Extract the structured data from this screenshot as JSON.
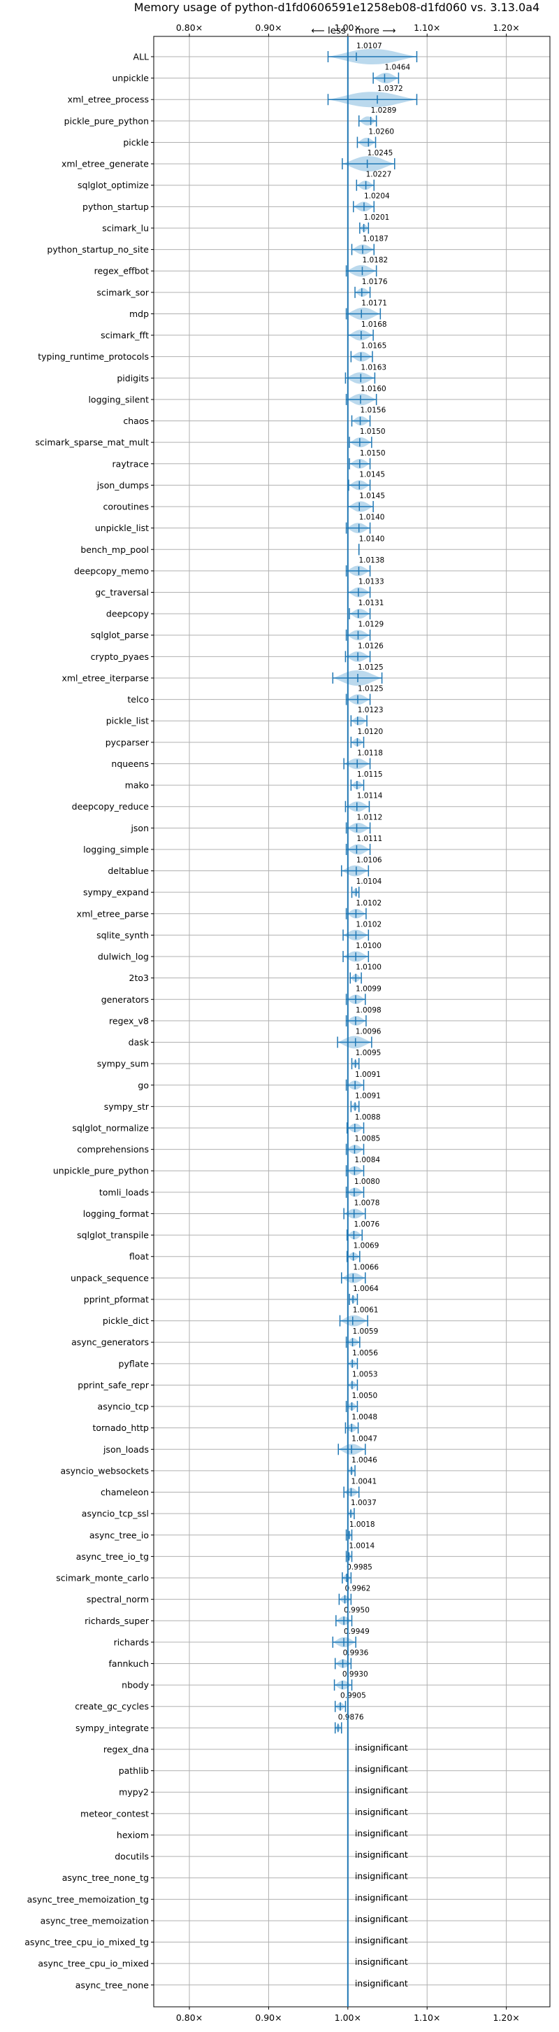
{
  "chart_data": {
    "type": "violin",
    "title": "Memory usage of python-d1fd0606591e1258eb08-d1fd060 vs. 3.13.0a4",
    "direction_label": "⟵ less · more ⟶",
    "x_ticks": [
      {
        "value": 0.8,
        "label": "0.80×"
      },
      {
        "value": 0.9,
        "label": "0.90×"
      },
      {
        "value": 1.0,
        "label": "1.00×"
      },
      {
        "value": 1.1,
        "label": "1.10×"
      },
      {
        "value": 1.2,
        "label": "1.20×"
      }
    ],
    "xlim": [
      0.755,
      1.255
    ],
    "reference_line": 1.0,
    "grid": true,
    "colors": {
      "violin": "#aacfe8",
      "whisker": "#1f77b4",
      "grid": "#b0b0b0",
      "axis": "#000000"
    },
    "insignificant_label": "insignificant",
    "benchmarks": [
      {
        "name": "ALL",
        "value": 1.0107,
        "label": "1.0107",
        "min": 0.975,
        "max": 1.087
      },
      {
        "name": "unpickle",
        "value": 1.0464,
        "label": "1.0464",
        "min": 1.032,
        "max": 1.064
      },
      {
        "name": "xml_etree_process",
        "value": 1.0372,
        "label": "1.0372",
        "min": 0.975,
        "max": 1.087
      },
      {
        "name": "pickle_pure_python",
        "value": 1.0289,
        "label": "1.0289",
        "min": 1.014,
        "max": 1.036
      },
      {
        "name": "pickle",
        "value": 1.026,
        "label": "1.0260",
        "min": 1.012,
        "max": 1.035
      },
      {
        "name": "xml_etree_generate",
        "value": 1.0245,
        "label": "1.0245",
        "min": 0.993,
        "max": 1.059
      },
      {
        "name": "sqlglot_optimize",
        "value": 1.0227,
        "label": "1.0227",
        "min": 1.011,
        "max": 1.033
      },
      {
        "name": "python_startup",
        "value": 1.0204,
        "label": "1.0204",
        "min": 1.007,
        "max": 1.033
      },
      {
        "name": "scimark_lu",
        "value": 1.0201,
        "label": "1.0201",
        "min": 1.015,
        "max": 1.026
      },
      {
        "name": "python_startup_no_site",
        "value": 1.0187,
        "label": "1.0187",
        "min": 1.005,
        "max": 1.033
      },
      {
        "name": "regex_effbot",
        "value": 1.0182,
        "label": "1.0182",
        "min": 0.998,
        "max": 1.036
      },
      {
        "name": "scimark_sor",
        "value": 1.0176,
        "label": "1.0176",
        "min": 1.009,
        "max": 1.028
      },
      {
        "name": "mdp",
        "value": 1.0171,
        "label": "1.0171",
        "min": 0.998,
        "max": 1.041
      },
      {
        "name": "scimark_fft",
        "value": 1.0168,
        "label": "1.0168",
        "min": 1.0,
        "max": 1.032
      },
      {
        "name": "typing_runtime_protocols",
        "value": 1.0165,
        "label": "1.0165",
        "min": 1.004,
        "max": 1.031
      },
      {
        "name": "pidigits",
        "value": 1.0163,
        "label": "1.0163",
        "min": 0.997,
        "max": 1.034
      },
      {
        "name": "logging_silent",
        "value": 1.016,
        "label": "1.0160",
        "min": 0.998,
        "max": 1.036
      },
      {
        "name": "chaos",
        "value": 1.0156,
        "label": "1.0156",
        "min": 1.005,
        "max": 1.028
      },
      {
        "name": "scimark_sparse_mat_mult",
        "value": 1.015,
        "label": "1.0150",
        "min": 1.002,
        "max": 1.03
      },
      {
        "name": "raytrace",
        "value": 1.015,
        "label": "1.0150",
        "min": 1.002,
        "max": 1.028
      },
      {
        "name": "json_dumps",
        "value": 1.0145,
        "label": "1.0145",
        "min": 1.001,
        "max": 1.028
      },
      {
        "name": "coroutines",
        "value": 1.0145,
        "label": "1.0145",
        "min": 1.0,
        "max": 1.032
      },
      {
        "name": "unpickle_list",
        "value": 1.014,
        "label": "1.0140",
        "min": 0.998,
        "max": 1.028
      },
      {
        "name": "bench_mp_pool",
        "value": 1.014,
        "label": "1.0140",
        "min": 1.014,
        "max": 1.014
      },
      {
        "name": "deepcopy_memo",
        "value": 1.0138,
        "label": "1.0138",
        "min": 0.998,
        "max": 1.028
      },
      {
        "name": "gc_traversal",
        "value": 1.0133,
        "label": "1.0133",
        "min": 1.0,
        "max": 1.028
      },
      {
        "name": "deepcopy",
        "value": 1.0131,
        "label": "1.0131",
        "min": 1.002,
        "max": 1.028
      },
      {
        "name": "sqlglot_parse",
        "value": 1.0129,
        "label": "1.0129",
        "min": 0.998,
        "max": 1.028
      },
      {
        "name": "crypto_pyaes",
        "value": 1.0126,
        "label": "1.0126",
        "min": 0.997,
        "max": 1.028
      },
      {
        "name": "xml_etree_iterparse",
        "value": 1.0125,
        "label": "1.0125",
        "min": 0.981,
        "max": 1.043
      },
      {
        "name": "telco",
        "value": 1.0125,
        "label": "1.0125",
        "min": 0.998,
        "max": 1.028
      },
      {
        "name": "pickle_list",
        "value": 1.0123,
        "label": "1.0123",
        "min": 1.004,
        "max": 1.024
      },
      {
        "name": "pycparser",
        "value": 1.012,
        "label": "1.0120",
        "min": 1.004,
        "max": 1.02
      },
      {
        "name": "nqueens",
        "value": 1.0118,
        "label": "1.0118",
        "min": 0.995,
        "max": 1.028
      },
      {
        "name": "mako",
        "value": 1.0115,
        "label": "1.0115",
        "min": 1.004,
        "max": 1.02
      },
      {
        "name": "deepcopy_reduce",
        "value": 1.0114,
        "label": "1.0114",
        "min": 0.997,
        "max": 1.027
      },
      {
        "name": "json",
        "value": 1.0112,
        "label": "1.0112",
        "min": 0.998,
        "max": 1.028
      },
      {
        "name": "logging_simple",
        "value": 1.0111,
        "label": "1.0111",
        "min": 0.998,
        "max": 1.028
      },
      {
        "name": "deltablue",
        "value": 1.0106,
        "label": "1.0106",
        "min": 0.992,
        "max": 1.026
      },
      {
        "name": "sympy_expand",
        "value": 1.0104,
        "label": "1.0104",
        "min": 1.005,
        "max": 1.014
      },
      {
        "name": "xml_etree_parse",
        "value": 1.0102,
        "label": "1.0102",
        "min": 0.998,
        "max": 1.023
      },
      {
        "name": "sqlite_synth",
        "value": 1.0102,
        "label": "1.0102",
        "min": 0.994,
        "max": 1.026
      },
      {
        "name": "dulwich_log",
        "value": 1.01,
        "label": "1.0100",
        "min": 0.994,
        "max": 1.026
      },
      {
        "name": "2to3",
        "value": 1.01,
        "label": "1.0100",
        "min": 1.003,
        "max": 1.017
      },
      {
        "name": "generators",
        "value": 1.0099,
        "label": "1.0099",
        "min": 0.998,
        "max": 1.022
      },
      {
        "name": "regex_v8",
        "value": 1.0098,
        "label": "1.0098",
        "min": 0.998,
        "max": 1.023
      },
      {
        "name": "dask",
        "value": 1.0096,
        "label": "1.0096",
        "min": 0.987,
        "max": 1.03
      },
      {
        "name": "sympy_sum",
        "value": 1.0095,
        "label": "1.0095",
        "min": 1.005,
        "max": 1.014
      },
      {
        "name": "go",
        "value": 1.0091,
        "label": "1.0091",
        "min": 0.998,
        "max": 1.02
      },
      {
        "name": "sympy_str",
        "value": 1.0091,
        "label": "1.0091",
        "min": 1.004,
        "max": 1.014
      },
      {
        "name": "sqlglot_normalize",
        "value": 1.0088,
        "label": "1.0088",
        "min": 0.999,
        "max": 1.02
      },
      {
        "name": "comprehensions",
        "value": 1.0085,
        "label": "1.0085",
        "min": 0.998,
        "max": 1.02
      },
      {
        "name": "unpickle_pure_python",
        "value": 1.0084,
        "label": "1.0084",
        "min": 0.998,
        "max": 1.02
      },
      {
        "name": "tomli_loads",
        "value": 1.008,
        "label": "1.0080",
        "min": 0.998,
        "max": 1.02
      },
      {
        "name": "logging_format",
        "value": 1.0078,
        "label": "1.0078",
        "min": 0.995,
        "max": 1.022
      },
      {
        "name": "sqlglot_transpile",
        "value": 1.0076,
        "label": "1.0076",
        "min": 0.999,
        "max": 1.018
      },
      {
        "name": "float",
        "value": 1.0069,
        "label": "1.0069",
        "min": 0.999,
        "max": 1.015
      },
      {
        "name": "unpack_sequence",
        "value": 1.0066,
        "label": "1.0066",
        "min": 0.992,
        "max": 1.022
      },
      {
        "name": "pprint_pformat",
        "value": 1.0064,
        "label": "1.0064",
        "min": 1.002,
        "max": 1.012
      },
      {
        "name": "pickle_dict",
        "value": 1.0061,
        "label": "1.0061",
        "min": 0.99,
        "max": 1.025
      },
      {
        "name": "async_generators",
        "value": 1.0059,
        "label": "1.0059",
        "min": 0.998,
        "max": 1.015
      },
      {
        "name": "pyflate",
        "value": 1.0056,
        "label": "1.0056",
        "min": 1.0,
        "max": 1.012
      },
      {
        "name": "pprint_safe_repr",
        "value": 1.0053,
        "label": "1.0053",
        "min": 1.0,
        "max": 1.012
      },
      {
        "name": "asyncio_tcp",
        "value": 1.005,
        "label": "1.0050",
        "min": 0.998,
        "max": 1.012
      },
      {
        "name": "tornado_http",
        "value": 1.0048,
        "label": "1.0048",
        "min": 0.997,
        "max": 1.013
      },
      {
        "name": "json_loads",
        "value": 1.0047,
        "label": "1.0047",
        "min": 0.988,
        "max": 1.022
      },
      {
        "name": "asyncio_websockets",
        "value": 1.0046,
        "label": "1.0046",
        "min": 1.0,
        "max": 1.009
      },
      {
        "name": "chameleon",
        "value": 1.0041,
        "label": "1.0041",
        "min": 0.995,
        "max": 1.014
      },
      {
        "name": "asyncio_tcp_ssl",
        "value": 1.0037,
        "label": "1.0037",
        "min": 1.0,
        "max": 1.008
      },
      {
        "name": "async_tree_io",
        "value": 1.0018,
        "label": "1.0018",
        "min": 0.998,
        "max": 1.005
      },
      {
        "name": "async_tree_io_tg",
        "value": 1.0014,
        "label": "1.0014",
        "min": 0.998,
        "max": 1.005
      },
      {
        "name": "scimark_monte_carlo",
        "value": 0.9985,
        "label": "0.9985",
        "min": 0.993,
        "max": 1.004
      },
      {
        "name": "spectral_norm",
        "value": 0.9962,
        "label": "0.9962",
        "min": 0.989,
        "max": 1.004
      },
      {
        "name": "richards_super",
        "value": 0.995,
        "label": "0.9950",
        "min": 0.985,
        "max": 1.005
      },
      {
        "name": "richards",
        "value": 0.9949,
        "label": "0.9949",
        "min": 0.981,
        "max": 1.01
      },
      {
        "name": "fannkuch",
        "value": 0.9936,
        "label": "0.9936",
        "min": 0.984,
        "max": 1.004
      },
      {
        "name": "nbody",
        "value": 0.993,
        "label": "0.9930",
        "min": 0.983,
        "max": 1.005
      },
      {
        "name": "create_gc_cycles",
        "value": 0.9905,
        "label": "0.9905",
        "min": 0.984,
        "max": 0.997
      },
      {
        "name": "sympy_integrate",
        "value": 0.9876,
        "label": "0.9876",
        "min": 0.984,
        "max": 0.992
      },
      {
        "name": "regex_dna",
        "value": null,
        "label": "insignificant"
      },
      {
        "name": "pathlib",
        "value": null,
        "label": "insignificant"
      },
      {
        "name": "mypy2",
        "value": null,
        "label": "insignificant"
      },
      {
        "name": "meteor_contest",
        "value": null,
        "label": "insignificant"
      },
      {
        "name": "hexiom",
        "value": null,
        "label": "insignificant"
      },
      {
        "name": "docutils",
        "value": null,
        "label": "insignificant"
      },
      {
        "name": "async_tree_none_tg",
        "value": null,
        "label": "insignificant"
      },
      {
        "name": "async_tree_memoization_tg",
        "value": null,
        "label": "insignificant"
      },
      {
        "name": "async_tree_memoization",
        "value": null,
        "label": "insignificant"
      },
      {
        "name": "async_tree_cpu_io_mixed_tg",
        "value": null,
        "label": "insignificant"
      },
      {
        "name": "async_tree_cpu_io_mixed",
        "value": null,
        "label": "insignificant"
      },
      {
        "name": "async_tree_none",
        "value": null,
        "label": "insignificant"
      }
    ]
  }
}
